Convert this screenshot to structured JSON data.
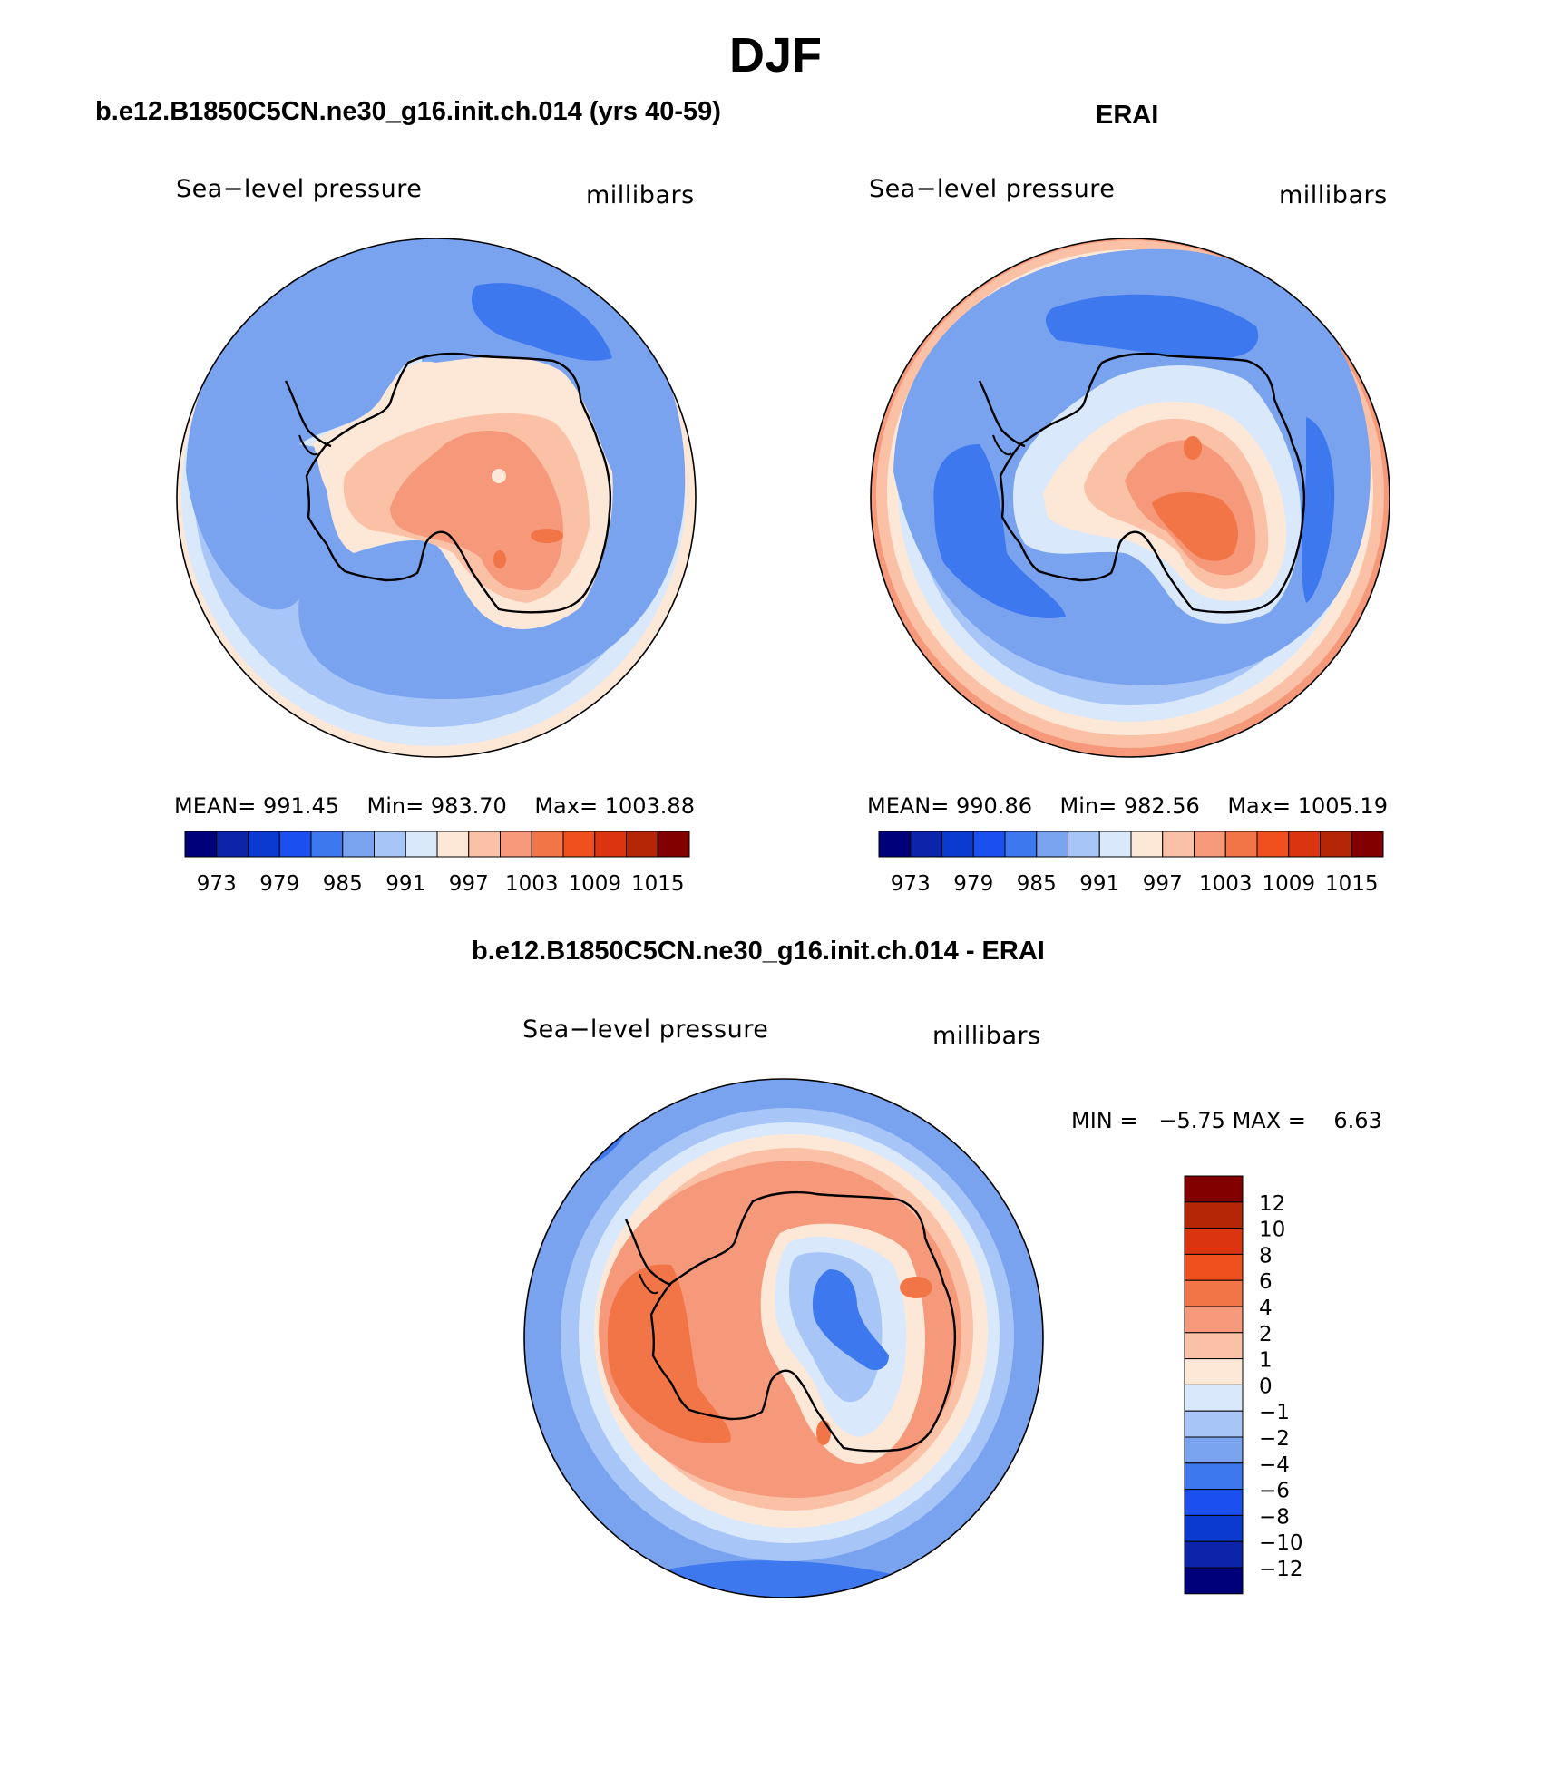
{
  "title": "DJF",
  "panels": [
    {
      "id": "model",
      "title": "b.e12.B1850C5CN.ne30_g16.init.ch.014 (yrs 40-59)",
      "left_label": "Sea−level pressure",
      "right_label": "millibars",
      "stats": {
        "mean_label": "MEAN=",
        "mean": "991.45",
        "min_label": "Min=",
        "min": "983.70",
        "max_label": "Max=",
        "max": "1003.88"
      }
    },
    {
      "id": "obs",
      "title": "ERAI",
      "left_label": "Sea−level pressure",
      "right_label": "millibars",
      "stats": {
        "mean_label": "MEAN=",
        "mean": "990.86",
        "min_label": "Min=",
        "min": "982.56",
        "max_label": "Max=",
        "max": "1005.19"
      }
    },
    {
      "id": "diff",
      "title": "b.e12.B1850C5CN.ne30_g16.init.ch.014 - ERAI",
      "left_label": "Sea−level pressure",
      "right_label": "millibars",
      "stats": {
        "min_label": "MIN =",
        "min": "−5.75",
        "max_label": "MAX =",
        "max": "6.63"
      }
    }
  ],
  "colorbars": {
    "absolute": {
      "colors": [
        "#00007a",
        "#0b24aa",
        "#0a3ad0",
        "#1c4fef",
        "#3e78ee",
        "#79a2ef",
        "#a7c5f7",
        "#d9e9fb",
        "#fde8d8",
        "#fbc1a7",
        "#f6997a",
        "#f27548",
        "#f0501d",
        "#db3410",
        "#b52607",
        "#820000"
      ],
      "ticks": [
        "973",
        "979",
        "985",
        "991",
        "997",
        "1003",
        "1009",
        "1015"
      ]
    },
    "difference": {
      "colors": [
        "#00007a",
        "#0b24aa",
        "#0a3ad0",
        "#1c4fef",
        "#3e78ee",
        "#79a2ef",
        "#a7c5f7",
        "#d9e9fb",
        "#fde8d8",
        "#fbc1a7",
        "#f6997a",
        "#f27548",
        "#f0501d",
        "#db3410",
        "#b52607",
        "#820000"
      ],
      "ticks": [
        "−12",
        "−10",
        "−8",
        "−6",
        "−4",
        "−2",
        "−1",
        "0",
        "1",
        "2",
        "4",
        "6",
        "8",
        "10",
        "12"
      ]
    }
  }
}
